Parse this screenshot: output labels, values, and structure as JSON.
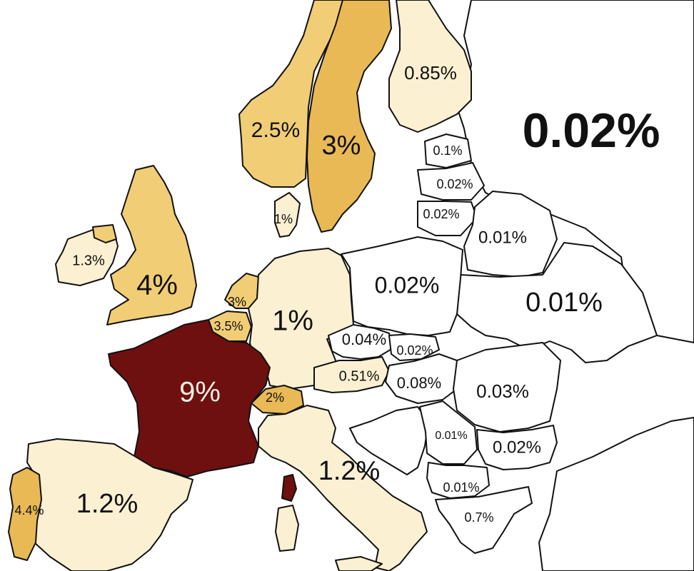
{
  "colors": {
    "background": "#ffffff",
    "sea": "#ffffff",
    "very_low": "#ffffff",
    "low": "#fcf0d2",
    "medium": "#f1cd75",
    "high": "#e9b956",
    "max": "#6e1010",
    "border": "#111111"
  },
  "labels": {
    "russia": "0.02%",
    "finland": "0.85%",
    "norway": "2.5%",
    "sweden": "3%",
    "estonia": "0.1%",
    "latvia": "0.02%",
    "lithuania": "0.02%",
    "belarus": "0.01%",
    "denmark": "1%",
    "ireland": "1.3%",
    "uk": "4%",
    "netherlands": "3%",
    "belgium": "3.5%",
    "germany": "1%",
    "poland": "0.02%",
    "ukraine": "0.01%",
    "czechia": "0.04%",
    "slovakia": "0.02%",
    "austria": "0.51%",
    "hungary": "0.08%",
    "romania": "0.03%",
    "france": "9%",
    "switzerland": "2%",
    "italy": "1.2%",
    "serbia": "0.01%",
    "bulgaria": "0.02%",
    "north_macedonia": "0.01%",
    "greece": "0.7%",
    "portugal": "4.4%",
    "spain": "1.2%"
  }
}
